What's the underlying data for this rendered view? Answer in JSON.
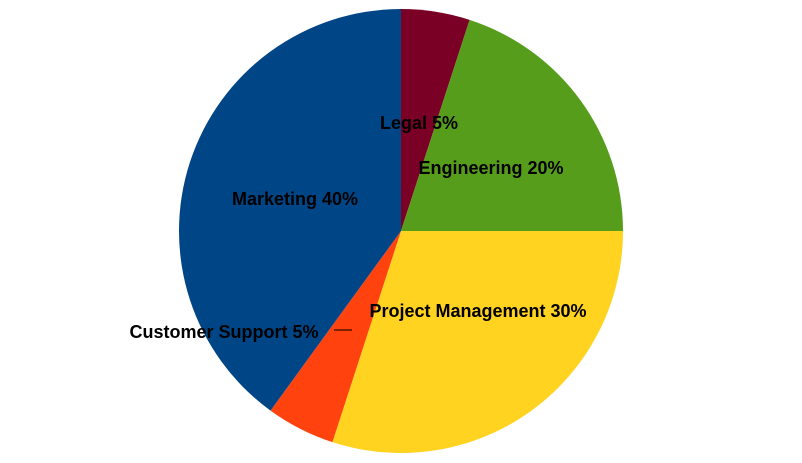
{
  "chart_data": {
    "type": "pie",
    "title": "",
    "start": "top",
    "direction": "clockwise",
    "legend": "none",
    "slices": [
      {
        "label": "Legal",
        "value": 5,
        "label_text": "Legal 5%",
        "color": "#7B0026"
      },
      {
        "label": "Engineering",
        "value": 20,
        "label_text": "Engineering 20%",
        "color": "#579D1C"
      },
      {
        "label": "Project Management",
        "value": 30,
        "label_text": "Project Management 30%",
        "color": "#FFD320"
      },
      {
        "label": "Customer Support",
        "value": 5,
        "label_text": "Customer Support 5%",
        "color": "#FF420E"
      },
      {
        "label": "Marketing",
        "value": 40,
        "label_text": "Marketing 40%",
        "color": "#004586"
      }
    ]
  }
}
